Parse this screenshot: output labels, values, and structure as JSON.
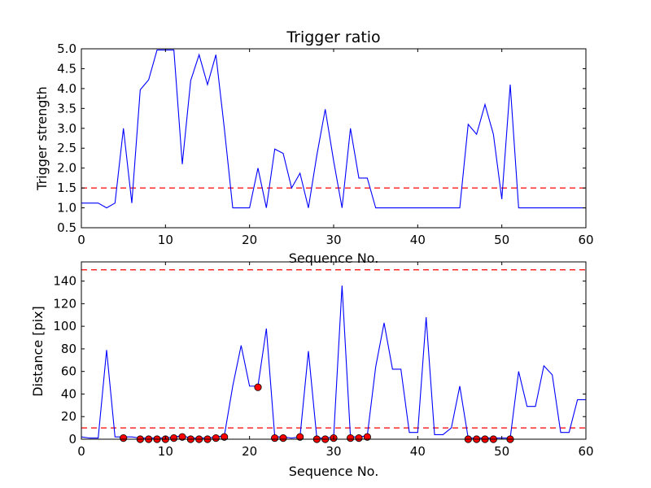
{
  "chart_data": [
    {
      "type": "line",
      "title": "Trigger ratio",
      "xlabel": "Sequence No.",
      "ylabel": "Trigger strength",
      "xlim": [
        0,
        60
      ],
      "ylim": [
        0.5,
        5.0
      ],
      "xticks": [
        "0",
        "10",
        "20",
        "30",
        "40",
        "50",
        "60"
      ],
      "yticks": [
        "0.5",
        "1.0",
        "1.5",
        "2.0",
        "2.5",
        "3.0",
        "3.5",
        "4.0",
        "4.5",
        "5.0"
      ],
      "grid": false,
      "series": [
        {
          "color": "#0000ff",
          "x": [
            0,
            1,
            2,
            3,
            4,
            5,
            6,
            7,
            8,
            9,
            10,
            11,
            12,
            13,
            14,
            15,
            16,
            17,
            18,
            19,
            20,
            21,
            22,
            23,
            24,
            25,
            26,
            27,
            28,
            29,
            30,
            31,
            32,
            33,
            34,
            35,
            36,
            37,
            38,
            39,
            40,
            41,
            42,
            43,
            44,
            45,
            46,
            47,
            48,
            49,
            50,
            51,
            52,
            53,
            54,
            55,
            56,
            57,
            58,
            59,
            60
          ],
          "y": [
            1.12,
            1.12,
            1.12,
            1.0,
            1.12,
            3.0,
            1.12,
            3.97,
            4.22,
            4.97,
            4.97,
            4.97,
            2.1,
            4.2,
            4.85,
            4.1,
            4.85,
            3.0,
            1.0,
            1.0,
            1.0,
            2.0,
            1.0,
            2.48,
            2.37,
            1.5,
            1.87,
            1.0,
            2.32,
            3.48,
            2.18,
            1.0,
            3.0,
            1.75,
            1.75,
            1.0,
            1.0,
            1.0,
            1.0,
            1.0,
            1.0,
            1.0,
            1.0,
            1.0,
            1.0,
            1.0,
            3.1,
            2.85,
            3.6,
            2.85,
            1.22,
            4.1,
            1.0,
            1.0,
            1.0,
            1.0,
            1.0,
            1.0,
            1.0,
            1.0,
            1.0
          ]
        }
      ],
      "reference_lines": [
        {
          "y": 1.5,
          "color": "#ff0000",
          "style": "dashed"
        }
      ]
    },
    {
      "type": "line",
      "title": "",
      "xlabel": "Sequence No.",
      "ylabel": "Distance [pix]",
      "xlim": [
        0,
        60
      ],
      "ylim": [
        0,
        157
      ],
      "xticks": [
        "0",
        "10",
        "20",
        "30",
        "40",
        "50",
        "60"
      ],
      "yticks": [
        "0",
        "20",
        "40",
        "60",
        "80",
        "100",
        "120",
        "140"
      ],
      "grid": false,
      "series": [
        {
          "color": "#0000ff",
          "x": [
            0,
            1,
            2,
            3,
            4,
            5,
            6,
            7,
            8,
            9,
            10,
            11,
            12,
            13,
            14,
            15,
            16,
            17,
            18,
            19,
            20,
            21,
            22,
            23,
            24,
            25,
            26,
            27,
            28,
            29,
            30,
            31,
            32,
            33,
            34,
            35,
            36,
            37,
            38,
            39,
            40,
            41,
            42,
            43,
            44,
            45,
            46,
            47,
            48,
            49,
            50,
            51,
            52,
            53,
            54,
            55,
            56,
            57,
            58,
            59,
            60
          ],
          "y": [
            2,
            1,
            1,
            79,
            2,
            2,
            2,
            1,
            1,
            1,
            1,
            2,
            3,
            1,
            1,
            1,
            2,
            3,
            47,
            83,
            47,
            47,
            98,
            2,
            2,
            1,
            2,
            78,
            1,
            1,
            2,
            136,
            2,
            2,
            3,
            64,
            103,
            62,
            62,
            6,
            6,
            108,
            4,
            4,
            10,
            47,
            1,
            1,
            1,
            1,
            1,
            1,
            60,
            29,
            29,
            65,
            57,
            6,
            6,
            35,
            35
          ]
        },
        {
          "type": "scatter",
          "color": "#ff0000",
          "x": [
            5,
            7,
            8,
            9,
            10,
            11,
            12,
            13,
            14,
            15,
            16,
            17,
            21,
            23,
            24,
            26,
            28,
            29,
            30,
            32,
            33,
            34,
            46,
            47,
            48,
            49,
            51
          ],
          "y": [
            1,
            0,
            0,
            0,
            0,
            1,
            2,
            0,
            0,
            0,
            1,
            2,
            46,
            1,
            1,
            2,
            0,
            0,
            1,
            1,
            1,
            2,
            0,
            0,
            0,
            0,
            0
          ]
        }
      ],
      "reference_lines": [
        {
          "y": 150,
          "color": "#ff0000",
          "style": "dashed"
        },
        {
          "y": 10,
          "color": "#ff0000",
          "style": "dashed"
        }
      ]
    }
  ]
}
